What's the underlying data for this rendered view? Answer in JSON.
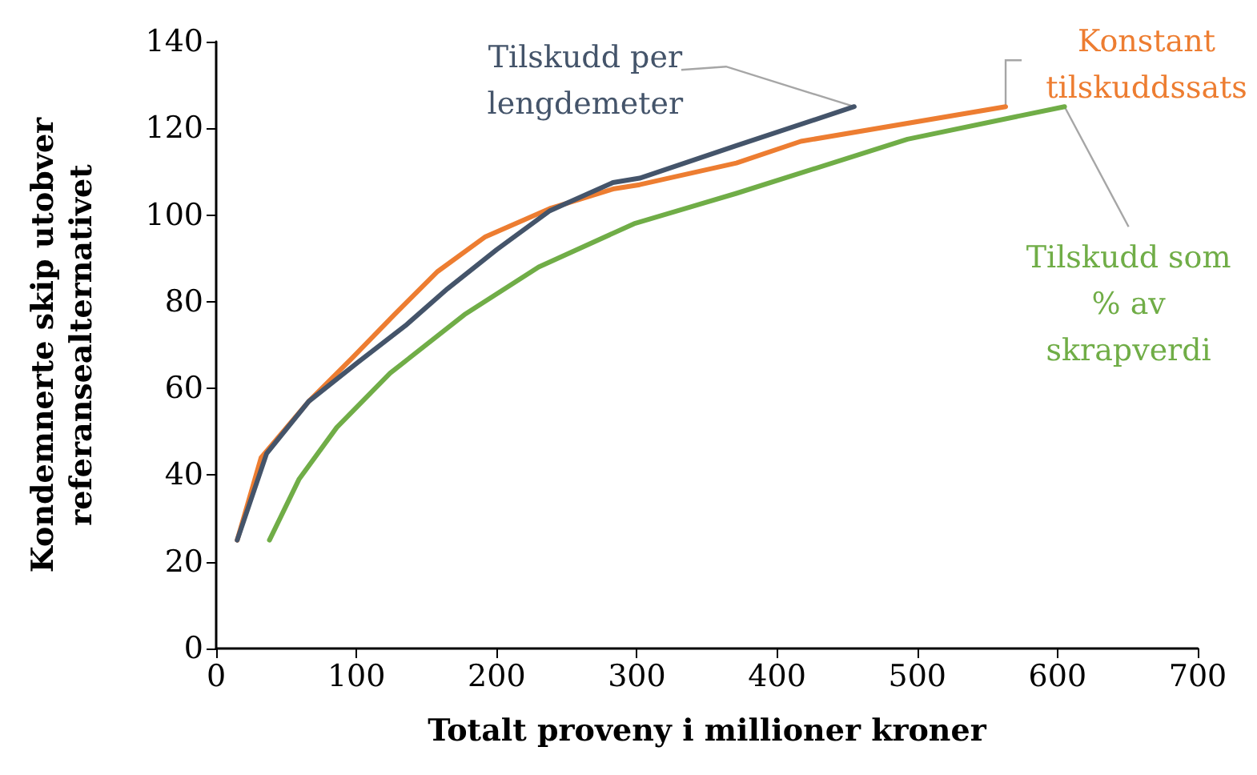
{
  "chart_data": {
    "type": "line",
    "xlabel": "Totalt proveny i millioner kroner",
    "ylabel": "Kondemnerte skip utobver\nreferansealternativet",
    "xlim": [
      0,
      700
    ],
    "xticks": [
      0,
      100,
      200,
      300,
      400,
      500,
      600,
      700
    ],
    "ylim": [
      0,
      140
    ],
    "yticks": [
      0,
      20,
      40,
      60,
      80,
      100,
      120,
      140
    ],
    "grid": false,
    "legend": false,
    "marker": "none",
    "line_style": "solid",
    "series": [
      {
        "name": "Tilskudd per lengdemeter",
        "color": "#44546a",
        "x": [
          15,
          36,
          66,
          101,
          135,
          165,
          200,
          238,
          283,
          302,
          371,
          455
        ],
        "values": [
          25,
          45,
          57,
          66,
          74.5,
          83,
          92,
          101,
          107.5,
          108.5,
          116,
          125
        ]
      },
      {
        "name": "Konstant tilskuddssats",
        "color": "#ed7d31",
        "x": [
          15,
          32,
          66,
          97,
          127,
          158,
          192,
          238,
          283,
          302,
          371,
          417,
          563
        ],
        "values": [
          25,
          44,
          57,
          67,
          77,
          87,
          95,
          101.5,
          106,
          107,
          112,
          117,
          125
        ]
      },
      {
        "name": "Tilskudd som % av skrapverdi",
        "color": "#70ad47",
        "x": [
          38,
          59,
          86,
          124,
          177,
          230,
          298,
          371,
          493,
          605
        ],
        "values": [
          25,
          39,
          51,
          63.5,
          77,
          88,
          98,
          105,
          117.5,
          125
        ]
      }
    ]
  }
}
